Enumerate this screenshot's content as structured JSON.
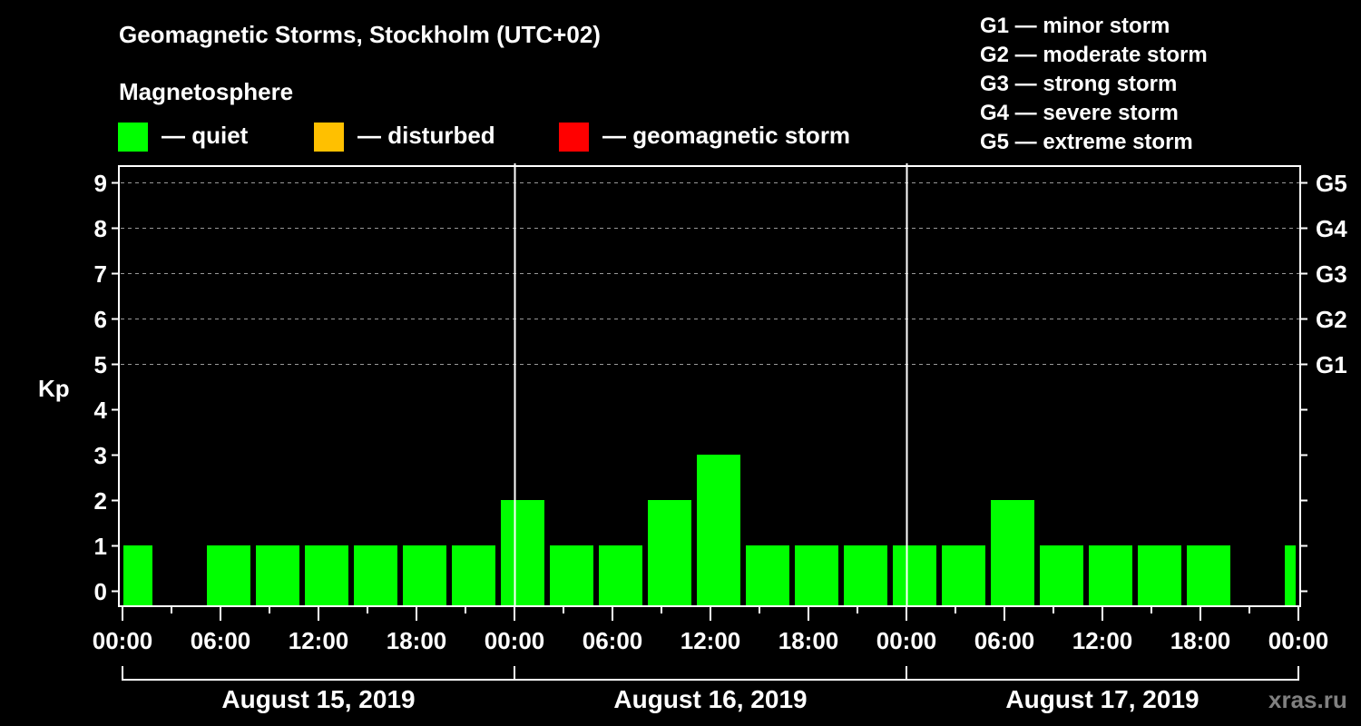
{
  "header": {
    "title": "Geomagnetic Storms, Stockholm (UTC+02)",
    "subtitle": "Magnetosphere"
  },
  "legend": {
    "items": [
      {
        "label": "— quiet",
        "color": "#00FF00"
      },
      {
        "label": "— disturbed",
        "color": "#FFC000"
      },
      {
        "label": "— geomagnetic storm",
        "color": "#FF0000"
      }
    ]
  },
  "storm_scale": [
    "G1 — minor storm",
    "G2 — moderate storm",
    "G3 — strong storm",
    "G4 — severe storm",
    "G5 — extreme storm"
  ],
  "axes": {
    "ylabel": "Kp",
    "yticks": [
      "0",
      "1",
      "2",
      "3",
      "4",
      "5",
      "6",
      "7",
      "8",
      "9"
    ],
    "right_ticks": [
      "G1",
      "G2",
      "G3",
      "G4",
      "G5"
    ],
    "xticks": [
      "00:00",
      "06:00",
      "12:00",
      "18:00",
      "00:00",
      "06:00",
      "12:00",
      "18:00",
      "00:00",
      "06:00",
      "12:00",
      "18:00",
      "00:00"
    ],
    "dates": [
      "August 15, 2019",
      "August 16, 2019",
      "August 17, 2019"
    ]
  },
  "watermark": "xras.ru",
  "colors": {
    "quiet": "#00FF00",
    "disturbed": "#FFC000",
    "storm": "#FF0000",
    "grid": "#999999",
    "axis": "#FFFFFF",
    "background": "#000000",
    "watermark": "#808080"
  },
  "chart_data": {
    "type": "bar",
    "title": "Geomagnetic Storms, Stockholm (UTC+02)",
    "subtitle": "Magnetosphere",
    "xlabel": "",
    "ylabel": "Kp",
    "ylim": [
      0,
      9
    ],
    "grid": true,
    "legend_position": "top",
    "legend": [
      "quiet",
      "disturbed",
      "geomagnetic storm"
    ],
    "categories": [
      "Aug 15 00:00",
      "Aug 15 03:00",
      "Aug 15 06:00",
      "Aug 15 09:00",
      "Aug 15 12:00",
      "Aug 15 15:00",
      "Aug 15 18:00",
      "Aug 15 21:00",
      "Aug 16 00:00",
      "Aug 16 03:00",
      "Aug 16 06:00",
      "Aug 16 09:00",
      "Aug 16 12:00",
      "Aug 16 15:00",
      "Aug 16 18:00",
      "Aug 16 21:00",
      "Aug 17 00:00",
      "Aug 17 03:00",
      "Aug 17 06:00",
      "Aug 17 09:00",
      "Aug 17 12:00",
      "Aug 17 15:00",
      "Aug 17 18:00",
      "Aug 17 21:00",
      "Aug 18 00:00"
    ],
    "values": [
      1,
      null,
      1,
      1,
      1,
      1,
      1,
      1,
      2,
      1,
      1,
      2,
      3,
      1,
      1,
      1,
      1,
      1,
      2,
      1,
      1,
      1,
      1,
      null,
      1
    ],
    "status": "quiet",
    "right_axis": {
      "5": "G1",
      "6": "G2",
      "7": "G3",
      "8": "G4",
      "9": "G5"
    },
    "x_tick_interval_hours": 6,
    "dates": [
      "August 15, 2019",
      "August 16, 2019",
      "August 17, 2019"
    ]
  }
}
